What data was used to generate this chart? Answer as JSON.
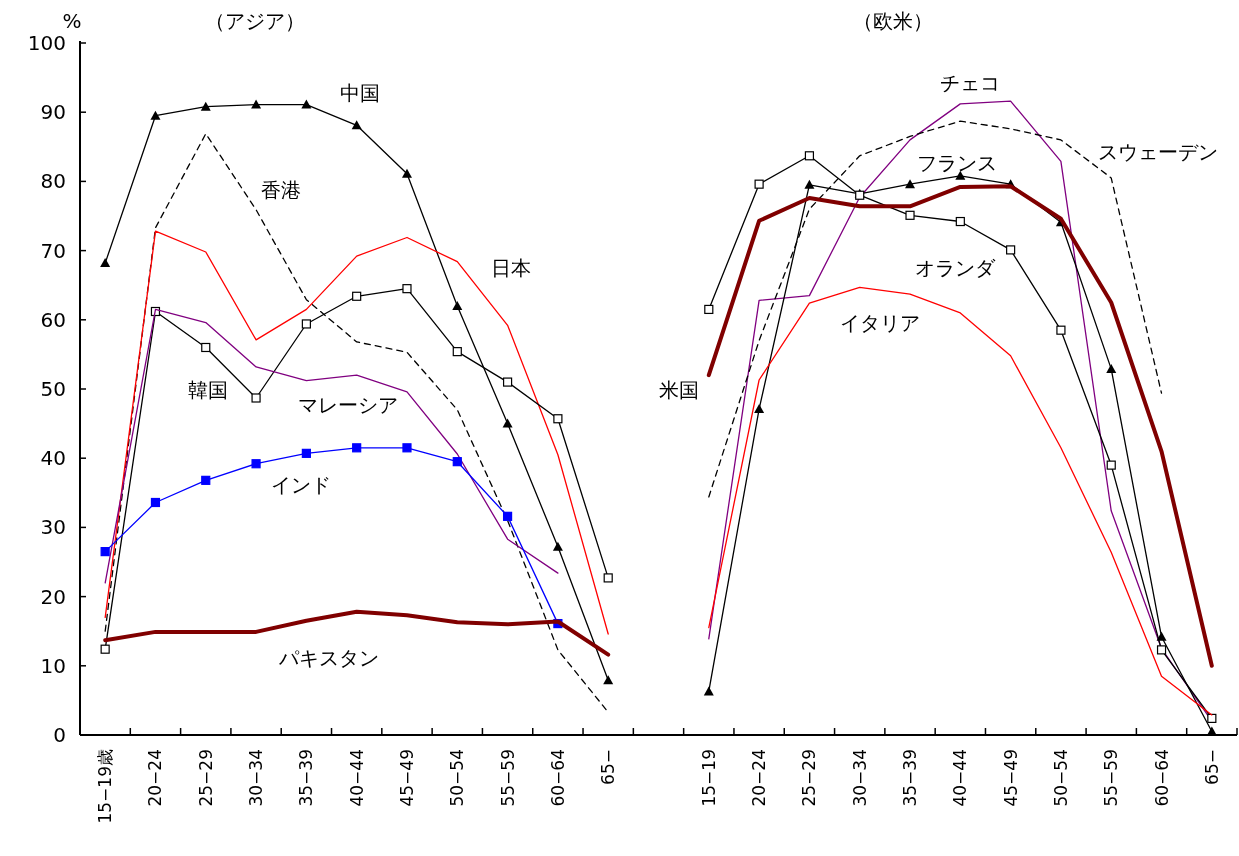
{
  "chart_data": {
    "type": "line",
    "ylabel": "%",
    "annotations": [
      "（アジア）",
      "（欧米）"
    ],
    "categories": [
      "15−19歳",
      "20−24",
      "25−29",
      "30−34",
      "35−39",
      "40−44",
      "45−49",
      "50−54",
      "55−59",
      "60−64",
      "65−",
      null,
      "15−19",
      "20−24",
      "25−29",
      "30−34",
      "35−39",
      "40−44",
      "45−49",
      "50−54",
      "55−59",
      "60−64",
      "65−"
    ],
    "ylim": [
      0,
      100
    ],
    "yticks": [
      0,
      10,
      20,
      30,
      40,
      50,
      60,
      70,
      80,
      90,
      100
    ],
    "grid": false,
    "series": [
      {
        "name": "中国",
        "color": "#000000",
        "marker": "triangle",
        "values": [
          68.2,
          89.5,
          90.8,
          91.1,
          91.1,
          88.1,
          81.1,
          62,
          45,
          27.2,
          7.9,
          null,
          null,
          null,
          null,
          null,
          null,
          null,
          null,
          null,
          null,
          null,
          null
        ]
      },
      {
        "name": "香港",
        "color": "#000000",
        "line_style": "dashed",
        "values": [
          15,
          73.3,
          86.9,
          75.9,
          62.9,
          56.8,
          55.3,
          47,
          31,
          12.3,
          3.3,
          null,
          null,
          null,
          null,
          null,
          null,
          null,
          null,
          null,
          null,
          null,
          null
        ]
      },
      {
        "name": "日本",
        "color": "#ff0000",
        "values": [
          17,
          72.8,
          69.8,
          57.1,
          61.5,
          69.2,
          71.9,
          68.4,
          59.2,
          40.5,
          14.6,
          null,
          null,
          null,
          null,
          null,
          null,
          null,
          null,
          null,
          null,
          null,
          null
        ]
      },
      {
        "name": "韓国",
        "color": "#000000",
        "marker": "square",
        "values": [
          12.4,
          61.2,
          56,
          48.7,
          59.4,
          63.4,
          64.5,
          55.4,
          51,
          45.7,
          22.7,
          null,
          null,
          null,
          null,
          null,
          null,
          null,
          null,
          null,
          null,
          null,
          null
        ]
      },
      {
        "name": "マレーシア",
        "color": "#800080",
        "values": [
          22,
          61.5,
          59.6,
          53.2,
          51.2,
          52,
          49.6,
          40.6,
          28.3,
          23.4,
          null,
          null,
          null,
          null,
          null,
          null,
          null,
          null,
          null,
          null,
          null,
          null,
          null
        ]
      },
      {
        "name": "インド",
        "color": "#0000ff",
        "marker": "square",
        "values": [
          26.5,
          33.6,
          36.8,
          39.2,
          40.7,
          41.5,
          41.5,
          39.5,
          31.6,
          16.1,
          null,
          null,
          null,
          null,
          null,
          null,
          null,
          null,
          null,
          null,
          null,
          null,
          null
        ]
      },
      {
        "name": "パキスタン",
        "color": "#800000",
        "values": [
          13.7,
          14.9,
          14.9,
          14.9,
          16.5,
          17.8,
          17.3,
          16.3,
          16,
          16.4,
          11.6,
          null,
          null,
          null,
          null,
          null,
          null,
          null,
          null,
          null,
          null,
          null,
          null
        ]
      },
      {
        "name": "チェコ",
        "color": "#800080",
        "values": [
          null,
          null,
          null,
          null,
          null,
          null,
          null,
          null,
          null,
          null,
          null,
          null,
          13.9,
          62.8,
          63.5,
          77.7,
          86,
          91.2,
          91.6,
          82.9,
          32.4,
          12.5,
          2
        ]
      },
      {
        "name": "スウェーデン",
        "color": "#000000",
        "line_style": "dashed",
        "values": [
          null,
          null,
          null,
          null,
          null,
          null,
          null,
          null,
          null,
          null,
          null,
          null,
          34.4,
          57,
          76,
          83.7,
          86.5,
          88.7,
          87.6,
          86,
          80.5,
          49.4,
          null
        ]
      },
      {
        "name": "フランス",
        "color": "#000000",
        "marker": "triangle",
        "values": [
          null,
          null,
          null,
          null,
          null,
          null,
          null,
          null,
          null,
          null,
          null,
          null,
          6.3,
          47.1,
          79.5,
          78.2,
          79.6,
          80.8,
          79.6,
          74.1,
          52.9,
          14.2,
          0.5
        ]
      },
      {
        "name": "オランダ",
        "color": "#000000",
        "marker": "square",
        "values": [
          null,
          null,
          null,
          null,
          null,
          null,
          null,
          null,
          null,
          null,
          null,
          null,
          61.5,
          79.6,
          83.7,
          78,
          75.1,
          74.2,
          70.1,
          58.5,
          39,
          12.3,
          2.4
        ]
      },
      {
        "name": "イタリア",
        "color": "#ff0000",
        "values": [
          null,
          null,
          null,
          null,
          null,
          null,
          null,
          null,
          null,
          null,
          null,
          null,
          15.5,
          51.3,
          62.4,
          64.7,
          63.7,
          61,
          54.8,
          41.5,
          26.4,
          8.5,
          2.9
        ]
      },
      {
        "name": "米国",
        "color": "#800000",
        "values": [
          null,
          null,
          null,
          null,
          null,
          null,
          null,
          null,
          null,
          null,
          null,
          null,
          52,
          74.3,
          77.6,
          76.4,
          76.4,
          79.2,
          79.3,
          74.6,
          62.5,
          41,
          10
        ]
      }
    ]
  }
}
